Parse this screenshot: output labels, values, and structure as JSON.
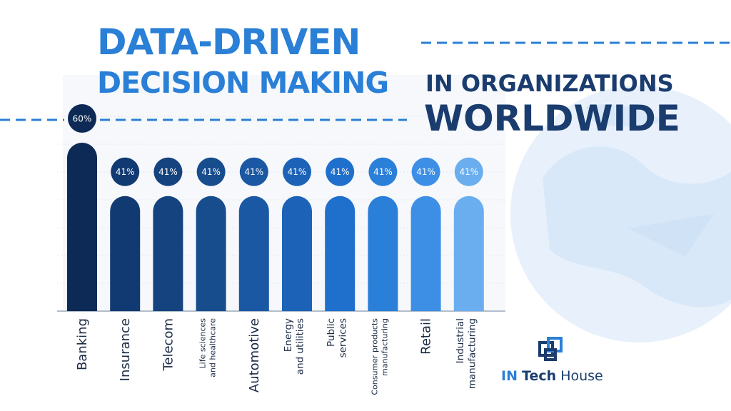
{
  "title": {
    "line1": "DATA-DRIVEN",
    "line2": "DECISION MAKING",
    "line3": "IN ORGANIZATIONS",
    "line4": "WORLDWIDE"
  },
  "logo": {
    "part1": "IN",
    "part2": "Tech",
    "part3": "House"
  },
  "colors": {
    "title_blue": "#2a7fd6",
    "title_navy": "#1a3c6e",
    "dashed_line": "#2a7fd6",
    "globe": "#e6f0fa"
  },
  "chart_data": {
    "type": "bar",
    "categories": [
      [
        "Banking"
      ],
      [
        "Insurance"
      ],
      [
        "Telecom"
      ],
      [
        "Life sciences",
        "and healthcare"
      ],
      [
        "Automotive"
      ],
      [
        "Energy",
        "and utilities"
      ],
      [
        "Public",
        "services"
      ],
      [
        "Consumer products",
        "manufacturing"
      ],
      [
        "Retail"
      ],
      [
        "Industrial",
        "manufacturing"
      ]
    ],
    "values": [
      60,
      41,
      41,
      41,
      41,
      41,
      41,
      41,
      41,
      41
    ],
    "data_labels": [
      "60%",
      "41%",
      "41%",
      "41%",
      "41%",
      "41%",
      "41%",
      "41%",
      "41%",
      "41%"
    ],
    "bar_colors": [
      "#0d2a56",
      "#123a72",
      "#15437f",
      "#174c8d",
      "#1a58a3",
      "#1c63b8",
      "#1f6fcc",
      "#2a7fd9",
      "#3d8fe6",
      "#6aaef0"
    ],
    "ylim": [
      0,
      60
    ],
    "grid": true,
    "legend": "none",
    "xlabel": "",
    "ylabel": ""
  }
}
